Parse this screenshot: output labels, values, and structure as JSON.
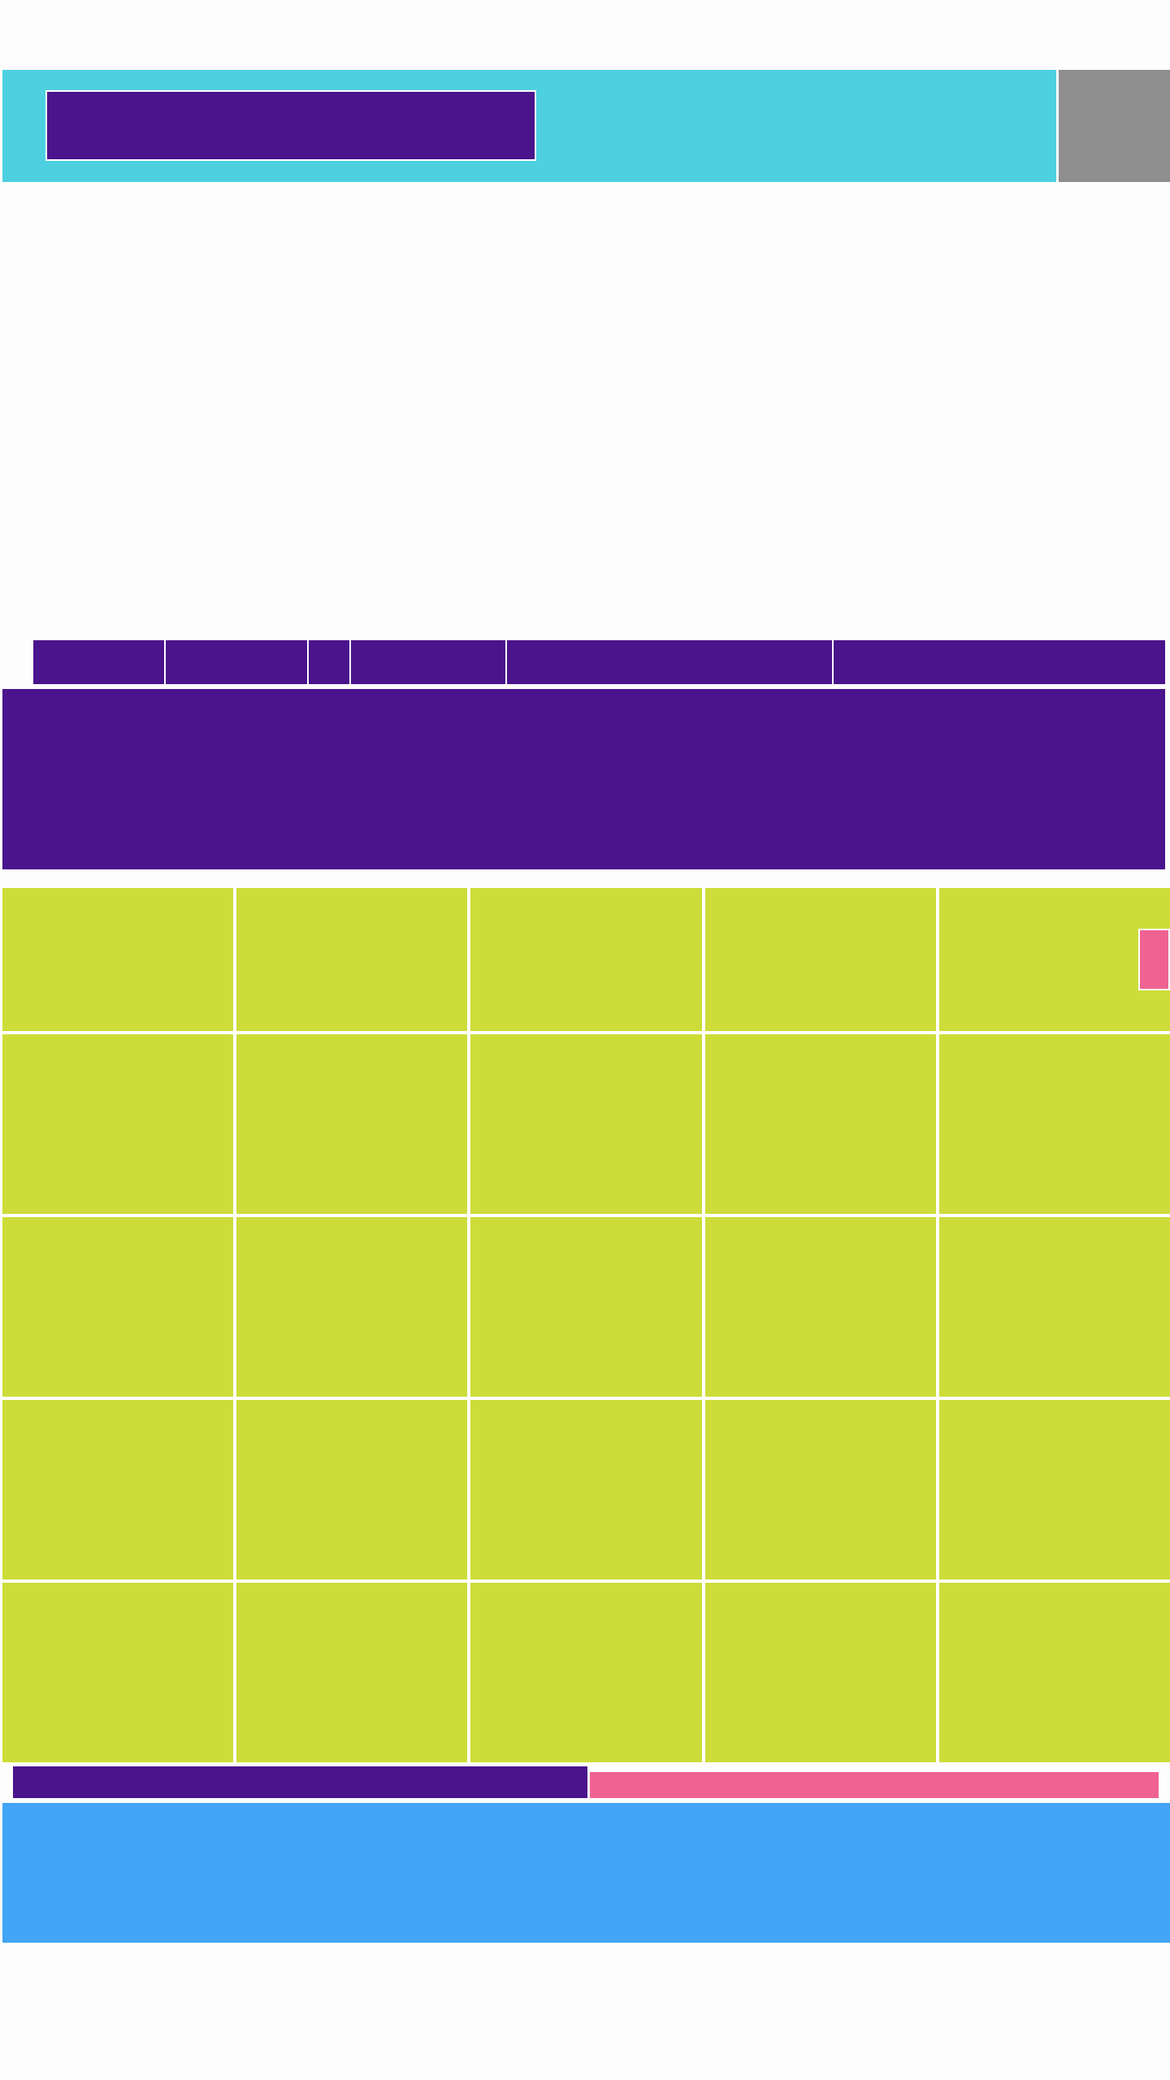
{
  "colors": {
    "header_bg": "#4dd1e1",
    "header_side_bg": "#8e8e8e",
    "primary": "#4a148c",
    "tile_bg": "#cddc39",
    "accent_pink": "#f06292",
    "footer_bg": "#42a5f5",
    "page_bg": "#fdfdfd"
  },
  "header": {
    "title": ""
  },
  "nav": {
    "items": [
      {
        "label": ""
      },
      {
        "label": ""
      },
      {
        "label": ""
      },
      {
        "label": ""
      },
      {
        "label": ""
      },
      {
        "label": ""
      }
    ]
  },
  "banner": {
    "text": ""
  },
  "grid": {
    "rows": 5,
    "columns": 5,
    "tiles": [
      {
        "label": ""
      },
      {
        "label": ""
      },
      {
        "label": ""
      },
      {
        "label": ""
      },
      {
        "label": ""
      },
      {
        "label": ""
      },
      {
        "label": ""
      },
      {
        "label": ""
      },
      {
        "label": ""
      },
      {
        "label": ""
      },
      {
        "label": ""
      },
      {
        "label": ""
      },
      {
        "label": ""
      },
      {
        "label": ""
      },
      {
        "label": ""
      },
      {
        "label": ""
      },
      {
        "label": ""
      },
      {
        "label": ""
      },
      {
        "label": ""
      },
      {
        "label": ""
      },
      {
        "label": ""
      },
      {
        "label": ""
      },
      {
        "label": ""
      },
      {
        "label": ""
      },
      {
        "label": ""
      }
    ]
  },
  "controls": {
    "primary_label": "",
    "secondary_label": ""
  },
  "footer": {
    "text": ""
  }
}
